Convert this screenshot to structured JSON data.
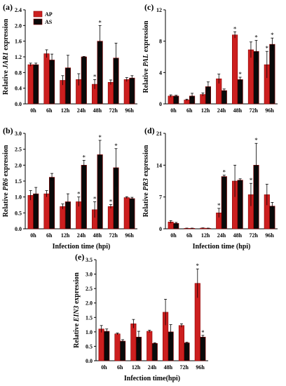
{
  "colors": {
    "AP": "#cc1f1f",
    "AS": "#0a0a0a",
    "bar_edge": "#8b0000"
  },
  "chart_data": [
    {
      "type": "bar",
      "panel_label": "(a)",
      "ylabel_prefix": "Relative ",
      "ylabel_gene": "JAR1",
      "ylabel_suffix": " expression",
      "xlabel": "",
      "categories": [
        "0h",
        "6h",
        "12h",
        "24h",
        "48h",
        "72h",
        "96h"
      ],
      "ylim": [
        0,
        2.4
      ],
      "yticks": [
        "0.0",
        "0.4",
        "0.8",
        "1.2",
        "1.6",
        "2.0",
        "2.4"
      ],
      "legend": {
        "placement": "top-left",
        "entries": [
          "AP",
          "AS"
        ]
      },
      "series": [
        {
          "name": "AP",
          "values": [
            1.0,
            1.28,
            0.6,
            0.62,
            0.5,
            0.55,
            0.62
          ],
          "errors": [
            0.04,
            0.1,
            0.12,
            0.15,
            0.12,
            0.06,
            0.05
          ],
          "stars": [
            false,
            false,
            false,
            false,
            true,
            false,
            false
          ]
        },
        {
          "name": "AS",
          "values": [
            1.0,
            1.12,
            0.92,
            1.2,
            1.6,
            1.17,
            0.66
          ],
          "errors": [
            0.04,
            0.15,
            0.32,
            0.01,
            0.4,
            0.38,
            0.06
          ],
          "stars": [
            false,
            false,
            false,
            false,
            true,
            false,
            false
          ]
        }
      ]
    },
    {
      "type": "bar",
      "panel_label": "(c)",
      "ylabel_prefix": "Relative ",
      "ylabel_gene": "PAL",
      "ylabel_suffix": " expression",
      "xlabel": "",
      "categories": [
        "0h",
        "6h",
        "12h",
        "24h",
        "48h",
        "72h",
        "96h"
      ],
      "ylim": [
        0,
        12
      ],
      "yticks": [
        "0",
        "4",
        "8",
        "12"
      ],
      "legend": null,
      "series": [
        {
          "name": "AP",
          "values": [
            1.0,
            0.5,
            1.2,
            3.2,
            8.8,
            6.9,
            5.0
          ],
          "errors": [
            0.15,
            0.1,
            0.2,
            0.6,
            0.4,
            1.0,
            1.7
          ],
          "stars": [
            false,
            false,
            false,
            false,
            true,
            false,
            true
          ]
        },
        {
          "name": "AS",
          "values": [
            1.0,
            1.0,
            2.2,
            1.7,
            3.1,
            6.7,
            7.6
          ],
          "errors": [
            0.1,
            0.35,
            0.6,
            0.2,
            0.3,
            1.4,
            0.8
          ],
          "stars": [
            false,
            false,
            false,
            false,
            true,
            true,
            true
          ]
        }
      ]
    },
    {
      "type": "bar",
      "panel_label": "(b)",
      "ylabel_prefix": "Relative ",
      "ylabel_gene": "PR6",
      "ylabel_suffix": " expression",
      "xlabel": "Infection time (hpi)",
      "categories": [
        "0h",
        "6h",
        "12h",
        "24h",
        "48h",
        "72h",
        "96h"
      ],
      "ylim": [
        0,
        3.0
      ],
      "yticks": [
        "0.0",
        "0.5",
        "1.0",
        "1.5",
        "2.0",
        "2.5",
        "3.0"
      ],
      "legend": null,
      "series": [
        {
          "name": "AP",
          "values": [
            1.05,
            1.1,
            0.7,
            0.85,
            0.6,
            0.7,
            0.98
          ],
          "errors": [
            0.15,
            0.1,
            0.08,
            0.15,
            0.25,
            0.06,
            0.03
          ],
          "stars": [
            false,
            false,
            false,
            true,
            true,
            true,
            false
          ]
        },
        {
          "name": "AS",
          "values": [
            1.1,
            1.62,
            0.85,
            2.0,
            2.33,
            1.92,
            0.95
          ],
          "errors": [
            0.2,
            0.12,
            0.25,
            0.15,
            0.45,
            0.6,
            0.04
          ],
          "stars": [
            false,
            false,
            false,
            true,
            true,
            true,
            false
          ]
        }
      ]
    },
    {
      "type": "bar",
      "panel_label": "(d)",
      "ylabel_prefix": "Relative ",
      "ylabel_gene": "PR3",
      "ylabel_suffix": " expression",
      "xlabel": "Infection time (hpi)",
      "categories": [
        "0h",
        "6h",
        "12h",
        "24h",
        "48h",
        "72h",
        "96h"
      ],
      "ylim": [
        0,
        21
      ],
      "yticks": [
        "0",
        "7",
        "14",
        "21"
      ],
      "legend": null,
      "series": [
        {
          "name": "AP",
          "values": [
            1.5,
            0.1,
            0.15,
            3.5,
            10.5,
            7.5,
            7.5
          ],
          "errors": [
            0.3,
            0.05,
            0.05,
            1.0,
            3.5,
            2.5,
            2.3
          ],
          "stars": [
            false,
            false,
            false,
            true,
            false,
            true,
            false
          ]
        },
        {
          "name": "AS",
          "values": [
            1.2,
            0.1,
            0.1,
            11.5,
            10.7,
            14.0,
            5.0
          ],
          "errors": [
            0.2,
            0.05,
            0.05,
            0.3,
            0.3,
            4.8,
            0.8
          ],
          "stars": [
            false,
            false,
            false,
            true,
            false,
            true,
            false
          ]
        }
      ]
    },
    {
      "type": "bar",
      "panel_label": "(e)",
      "ylabel_prefix": "Relative ",
      "ylabel_gene": "EIN3",
      "ylabel_suffix": " expression",
      "xlabel": "Infection time(hpi)",
      "categories": [
        "0h",
        "6h",
        "12h",
        "24h",
        "48h",
        "72h",
        "96h"
      ],
      "ylim": [
        0,
        3.5
      ],
      "yticks": [
        "0.0",
        "0.5",
        "1.0",
        "1.5",
        "2.0",
        "2.5",
        "3.0",
        "3.5"
      ],
      "legend": null,
      "series": [
        {
          "name": "AP",
          "values": [
            1.1,
            0.93,
            1.28,
            1.02,
            1.68,
            1.22,
            2.68
          ],
          "errors": [
            0.12,
            0.03,
            0.15,
            0.04,
            0.45,
            0.06,
            0.5
          ],
          "stars": [
            false,
            false,
            false,
            false,
            false,
            false,
            true
          ]
        },
        {
          "name": "AS",
          "values": [
            1.02,
            0.68,
            0.82,
            0.6,
            1.0,
            0.62,
            0.82
          ],
          "errors": [
            0.08,
            0.05,
            0.2,
            0.02,
            0.25,
            0.02,
            0.06
          ],
          "stars": [
            false,
            false,
            false,
            false,
            false,
            false,
            true
          ]
        }
      ]
    }
  ]
}
